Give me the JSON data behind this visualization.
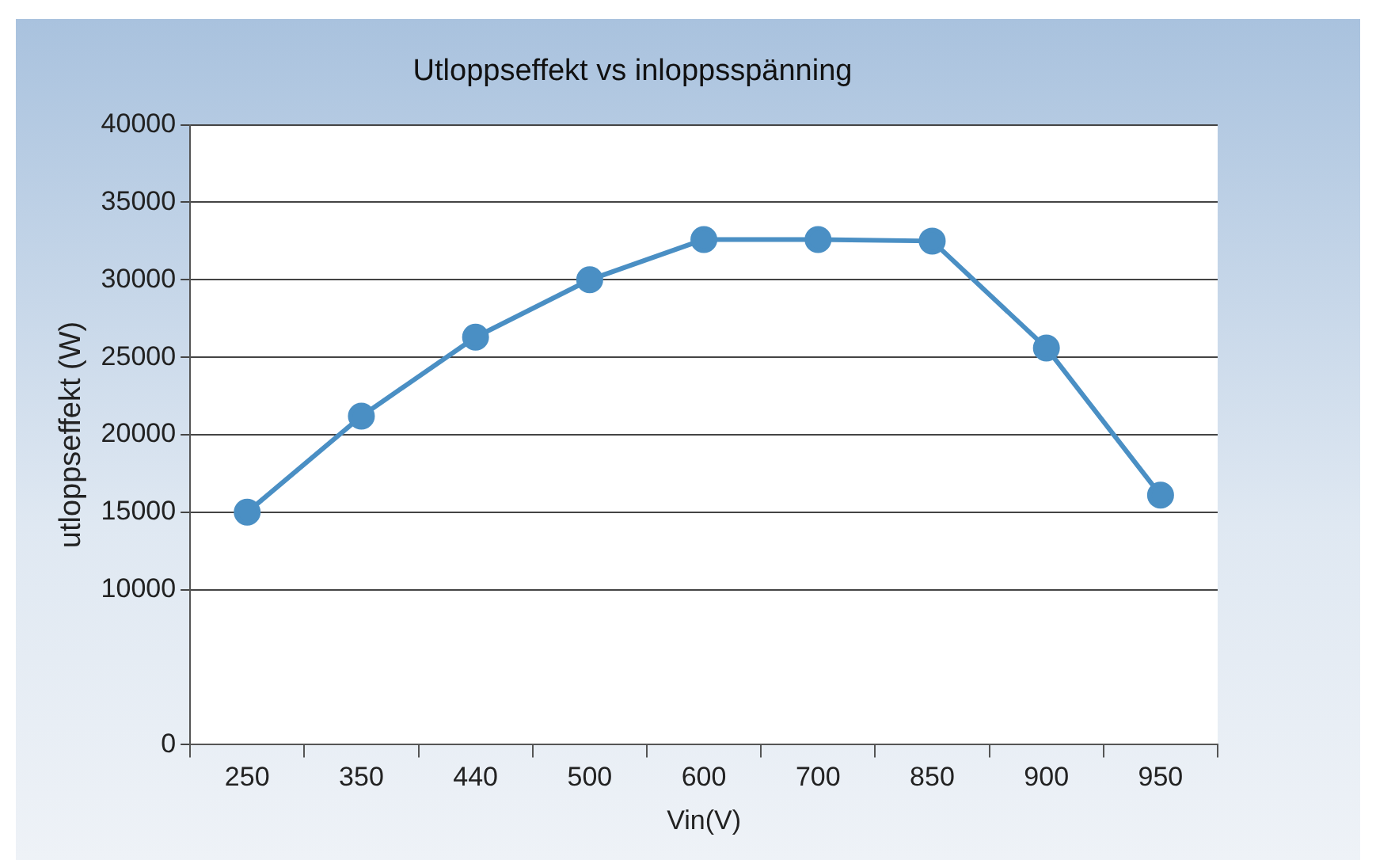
{
  "chart_data": {
    "type": "line",
    "title": "Utloppseffekt vs inloppsspänning",
    "xlabel": "Vin(V)",
    "ylabel": "utloppseffekt (W)",
    "categories": [
      "250",
      "350",
      "440",
      "500",
      "600",
      "700",
      "850",
      "900",
      "950"
    ],
    "series": [
      {
        "color": "#4a8fc4",
        "values": [
          15000,
          21200,
          26300,
          30000,
          32600,
          32600,
          32500,
          25600,
          16100
        ]
      }
    ],
    "ylim": [
      0,
      40000
    ],
    "yticks": [
      0,
      10000,
      15000,
      20000,
      25000,
      30000,
      35000,
      40000
    ],
    "grid": "y",
    "marker": "circle",
    "line_style": "solid",
    "legend": false
  }
}
